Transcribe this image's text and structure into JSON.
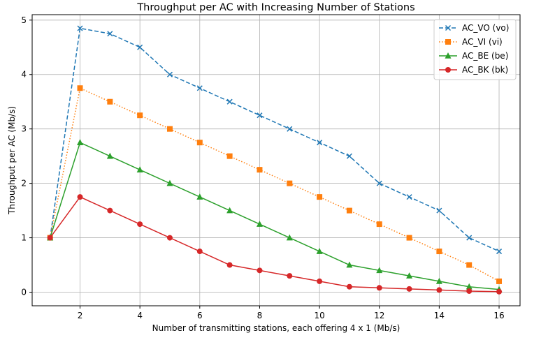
{
  "chart_data": {
    "type": "line",
    "title": "Throughput per AC with Increasing Number of Stations",
    "xlabel": "Number of transmitting stations, each offering 4 x 1 (Mb/s)",
    "ylabel": "Throughput per AC (Mb/s)",
    "xlim": [
      0.4,
      16.7
    ],
    "ylim": [
      -0.25,
      5.1
    ],
    "xticks": [
      2,
      4,
      6,
      8,
      10,
      12,
      14,
      16
    ],
    "yticks": [
      0,
      1,
      2,
      3,
      4,
      5
    ],
    "grid": true,
    "legend_position": "top-right",
    "x": [
      1,
      2,
      3,
      4,
      5,
      6,
      7,
      8,
      9,
      10,
      11,
      12,
      13,
      14,
      15,
      16
    ],
    "series": [
      {
        "name": "AC_VO (vo)",
        "color": "#1f77b4",
        "linestyle": "dashed",
        "marker": "x",
        "values": [
          1.0,
          4.85,
          4.75,
          4.5,
          4.0,
          3.75,
          3.5,
          3.25,
          3.0,
          2.75,
          2.5,
          2.0,
          1.75,
          1.5,
          1.0,
          0.75
        ]
      },
      {
        "name": "AC_VI (vi)",
        "color": "#ff7f0e",
        "linestyle": "dotted",
        "marker": "square",
        "values": [
          1.0,
          3.75,
          3.5,
          3.25,
          3.0,
          2.75,
          2.5,
          2.25,
          2.0,
          1.75,
          1.5,
          1.25,
          1.0,
          0.75,
          0.5,
          0.2
        ]
      },
      {
        "name": "AC_BE (be)",
        "color": "#2ca02c",
        "linestyle": "solid",
        "marker": "triangle",
        "values": [
          1.0,
          2.75,
          2.5,
          2.25,
          2.0,
          1.75,
          1.5,
          1.25,
          1.0,
          0.75,
          0.5,
          0.4,
          0.3,
          0.2,
          0.1,
          0.05
        ]
      },
      {
        "name": "AC_BK (bk)",
        "color": "#d62728",
        "linestyle": "solid",
        "marker": "circle",
        "values": [
          1.0,
          1.75,
          1.5,
          1.25,
          1.0,
          0.75,
          0.5,
          0.4,
          0.3,
          0.2,
          0.1,
          0.08,
          0.06,
          0.04,
          0.02,
          0.01
        ]
      }
    ]
  }
}
